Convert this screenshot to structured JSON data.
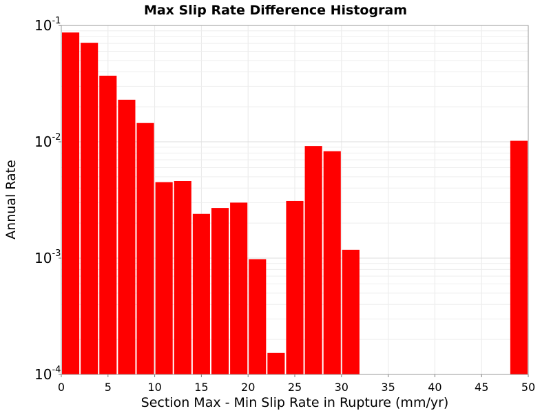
{
  "chart_data": {
    "type": "bar",
    "title": "Max Slip Rate Difference Histogram",
    "xlabel": "Section Max - Min Slip Rate in Rupture (mm/yr)",
    "ylabel": "Annual Rate",
    "xlim": [
      0,
      50
    ],
    "ylim": [
      0.0001,
      0.1
    ],
    "yscale": "log",
    "grid": true,
    "bar_width": 2,
    "bar_color": "#ff0000",
    "x_ticks": [
      "0",
      "5",
      "10",
      "15",
      "20",
      "25",
      "30",
      "35",
      "40",
      "45",
      "50"
    ],
    "y_ticks": [
      {
        "base": "10",
        "exp": "-1"
      },
      {
        "base": "10",
        "exp": "-2"
      },
      {
        "base": "10",
        "exp": "-3"
      },
      {
        "base": "10",
        "exp": "-4"
      }
    ],
    "bars": [
      {
        "x": 1,
        "y": 0.087
      },
      {
        "x": 3,
        "y": 0.071
      },
      {
        "x": 5,
        "y": 0.037
      },
      {
        "x": 7,
        "y": 0.023
      },
      {
        "x": 9,
        "y": 0.0145
      },
      {
        "x": 11,
        "y": 0.0045
      },
      {
        "x": 13,
        "y": 0.0046
      },
      {
        "x": 15,
        "y": 0.0024
      },
      {
        "x": 17,
        "y": 0.0027
      },
      {
        "x": 19,
        "y": 0.003
      },
      {
        "x": 21,
        "y": 0.00098
      },
      {
        "x": 23,
        "y": 0.000153
      },
      {
        "x": 25,
        "y": 0.0031
      },
      {
        "x": 27,
        "y": 0.0092
      },
      {
        "x": 29,
        "y": 0.0083
      },
      {
        "x": 31,
        "y": 0.00118
      },
      {
        "x": 49,
        "y": 0.0102
      }
    ]
  }
}
